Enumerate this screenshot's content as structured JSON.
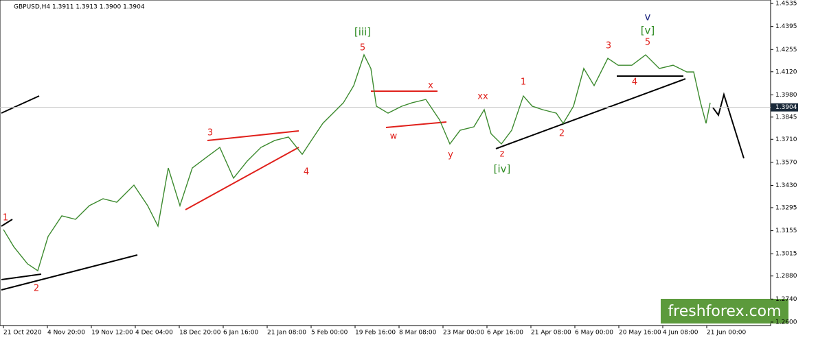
{
  "chart_data": {
    "type": "line",
    "title": "GBPUSD,H4  1.3911 1.3913 1.3900 1.3904",
    "current_price": {
      "value": 1.3904,
      "label": "1.3904"
    },
    "watermark": "freshforex.com",
    "series": [
      {
        "name": "GBPUSD",
        "color": "#3c8a2e",
        "x": [
          0,
          1.875,
          4.375,
          6.25,
          8.125,
          10.625,
          13.125,
          15.625,
          18.125,
          20.625,
          23.75,
          26.25,
          28.125,
          30,
          32.125,
          34.375,
          36.875,
          39.375,
          41.875,
          44.375,
          46.875,
          49.375,
          51.875,
          54.375,
          55.625,
          58.125,
          60.625,
          61.875,
          63.75,
          65.625,
          66.875,
          67.875,
          70,
          72.5,
          74.375,
          76.875,
          79.375,
          81.25,
          83.125,
          85.625,
          87.5,
          88.75,
          90.625,
          92.5,
          94.625,
          96.25,
          98.125,
          100.625,
          101.875,
          103.75,
          105.625,
          107.5,
          110,
          111.875,
          114.375,
          116.875,
          119.375,
          121.875,
          124.375,
          125.625,
          126.875,
          127.875,
          128.625
        ],
        "values": [
          1.3162,
          1.3058,
          1.2954,
          1.2912,
          1.312,
          1.3245,
          1.3224,
          1.3307,
          1.3349,
          1.3328,
          1.3432,
          1.3307,
          1.3183,
          1.3536,
          1.3307,
          1.3536,
          1.3599,
          1.3661,
          1.3474,
          1.3578,
          1.3661,
          1.3703,
          1.3724,
          1.3619,
          1.3682,
          1.3807,
          1.389,
          1.3932,
          1.4036,
          1.4223,
          1.414,
          1.3911,
          1.3869,
          1.3911,
          1.3932,
          1.3952,
          1.3828,
          1.3682,
          1.3765,
          1.3786,
          1.389,
          1.3744,
          1.3682,
          1.3765,
          1.3973,
          1.3911,
          1.389,
          1.3869,
          1.3807,
          1.3911,
          1.414,
          1.4036,
          1.4202,
          1.416,
          1.416,
          1.4223,
          1.414,
          1.416,
          1.4119,
          1.4119,
          1.3932,
          1.3807,
          1.3932
        ]
      }
    ],
    "xlim": [
      -0.625,
      139.625
    ],
    "xticks": [
      {
        "value": 0,
        "label": "21 Oct 2020"
      },
      {
        "value": 8,
        "label": "4 Nov 20:00"
      },
      {
        "value": 16,
        "label": "19 Nov 12:00"
      },
      {
        "value": 24,
        "label": "4 Dec 04:00"
      },
      {
        "value": 32,
        "label": "18 Dec 20:00"
      },
      {
        "value": 40,
        "label": "6 Jan 16:00"
      },
      {
        "value": 48,
        "label": "21 Jan 08:00"
      },
      {
        "value": 56,
        "label": "5 Feb 00:00"
      },
      {
        "value": 64,
        "label": "19 Feb 16:00"
      },
      {
        "value": 72,
        "label": "8 Mar 08:00"
      },
      {
        "value": 80,
        "label": "23 Mar 00:00"
      },
      {
        "value": 88,
        "label": "6 Apr 16:00"
      },
      {
        "value": 96,
        "label": "21 Apr 08:00"
      },
      {
        "value": 104,
        "label": "6 May 00:00"
      },
      {
        "value": 112,
        "label": "20 May 16:00"
      },
      {
        "value": 120,
        "label": "4 Jun 08:00"
      },
      {
        "value": 128,
        "label": "21 Jun 00:00"
      }
    ],
    "ylim": [
      1.2579,
      1.4556
    ],
    "yticks": [
      1.4535,
      1.4395,
      1.4255,
      {
        "value": 1.412,
        "label": "1.4120"
      },
      {
        "value": 1.398,
        "label": "1.3980"
      },
      1.3845,
      {
        "value": 1.371,
        "label": "1.3710"
      },
      {
        "value": 1.357,
        "label": "1.3570"
      },
      {
        "value": 1.343,
        "label": "1.3430"
      },
      1.3295,
      1.3155,
      1.3015,
      {
        "value": 1.288,
        "label": "1.2880"
      },
      {
        "value": 1.274,
        "label": "1.2740"
      },
      {
        "value": 1.26,
        "label": "1.2600"
      }
    ],
    "annotations": [
      {
        "text": "1",
        "x": 0.375,
        "y": 1.3232,
        "color": "#e0201b"
      },
      {
        "text": "2",
        "x": 6,
        "y": 1.2804,
        "color": "#e0201b"
      },
      {
        "text": "3",
        "x": 37.625,
        "y": 1.3748,
        "color": "#e0201b"
      },
      {
        "text": "4",
        "x": 55.125,
        "y": 1.3511,
        "color": "#e0201b"
      },
      {
        "text": "5",
        "x": 65.375,
        "y": 1.4265,
        "color": "#e0201b"
      },
      {
        "text": "[iii]",
        "x": 65.375,
        "y": 1.436,
        "color": "#2e8b22"
      },
      {
        "text": "w",
        "x": 71,
        "y": 1.3728,
        "color": "#e0201b"
      },
      {
        "text": "x",
        "x": 77.75,
        "y": 1.4036,
        "color": "#e0201b"
      },
      {
        "text": "y",
        "x": 81.375,
        "y": 1.3615,
        "color": "#e0201b"
      },
      {
        "text": "xx",
        "x": 87.25,
        "y": 1.3969,
        "color": "#e0201b"
      },
      {
        "text": "z",
        "x": 90.75,
        "y": 1.3619,
        "color": "#e0201b"
      },
      {
        "text": "[iv]",
        "x": 90.75,
        "y": 1.3528,
        "color": "#2e8b22"
      },
      {
        "text": "1",
        "x": 94.625,
        "y": 1.4056,
        "color": "#e0201b"
      },
      {
        "text": "2",
        "x": 101.625,
        "y": 1.3744,
        "color": "#e0201b"
      },
      {
        "text": "3",
        "x": 110.125,
        "y": 1.4277,
        "color": "#e0201b"
      },
      {
        "text": "4",
        "x": 114.875,
        "y": 1.4056,
        "color": "#e0201b"
      },
      {
        "text": "5",
        "x": 117.25,
        "y": 1.4298,
        "color": "#e0201b"
      },
      {
        "text": "[v]",
        "x": 117.25,
        "y": 1.4369,
        "color": "#2e8b22"
      },
      {
        "text": "v",
        "x": 117.25,
        "y": 1.4452,
        "color": "#1a237e"
      }
    ]
  }
}
